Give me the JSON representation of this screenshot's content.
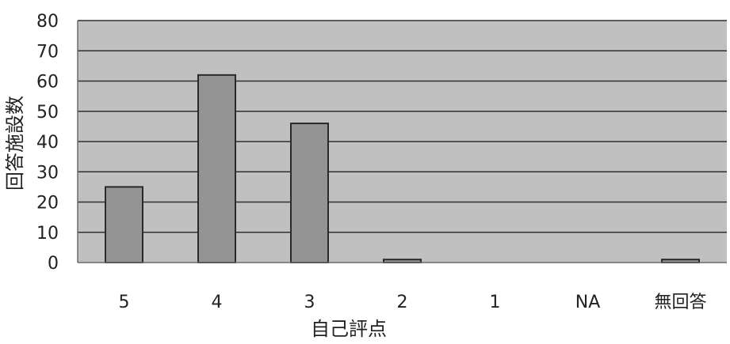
{
  "chart_data": {
    "type": "bar",
    "title": "",
    "xlabel": "自己評点",
    "ylabel": "回答施設数",
    "categories": [
      "5",
      "4",
      "3",
      "2",
      "1",
      "NA",
      "無回答"
    ],
    "values": [
      25,
      62,
      46,
      1,
      0,
      0,
      1
    ],
    "ylim": [
      0,
      80
    ],
    "yticks": [
      "0",
      "10",
      "20",
      "30",
      "40",
      "50",
      "60",
      "70",
      "80"
    ],
    "grid": true,
    "legend": "none",
    "colors": {
      "plot_background": "#c0c0c0",
      "bar_fill": "#949494",
      "bar_stroke": "#2a2a2a",
      "gridline": "#2f2f2f",
      "axis": "#6a6a6a"
    }
  }
}
